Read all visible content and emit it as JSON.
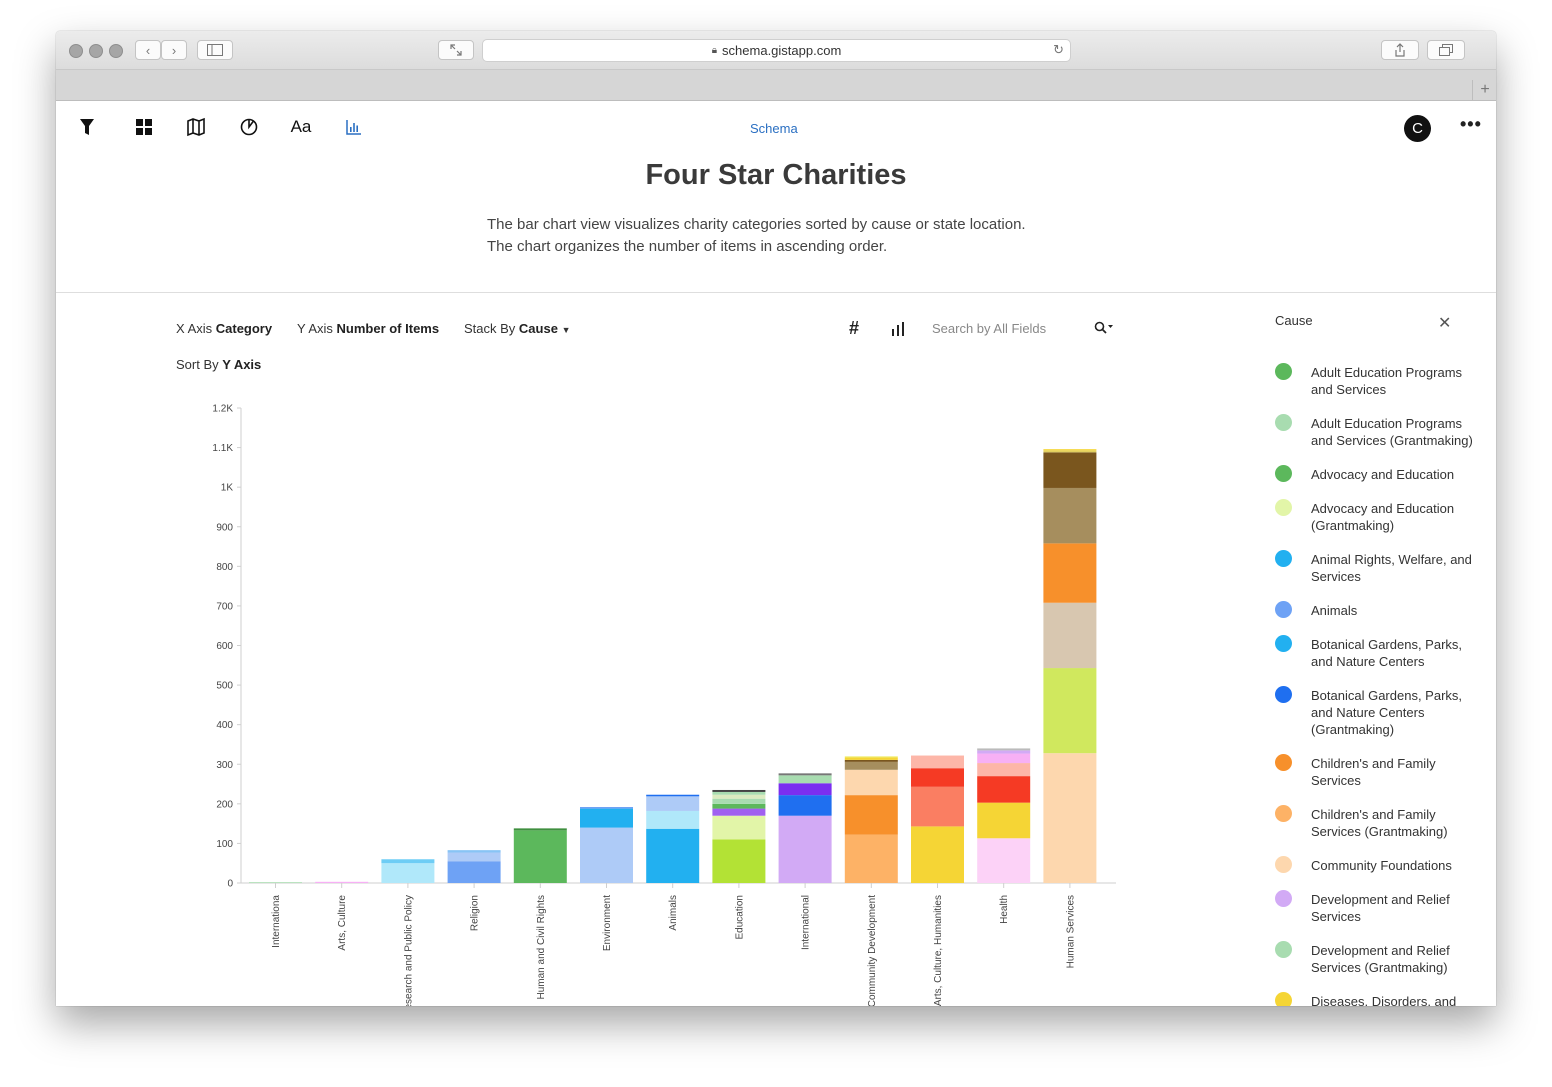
{
  "browser": {
    "url": "schema.gistapp.com"
  },
  "app": {
    "brand_link": "Schema",
    "avatar_initial": "C",
    "more": "•••",
    "font_tool": "Aa",
    "accent": "#2a6fc2"
  },
  "header": {
    "title": "Four Star Charities",
    "description_line1": "The bar chart view visualizes charity categories sorted by cause or state location.",
    "description_line2": "The chart organizes the number of items in ascending order."
  },
  "controls": {
    "x_axis_label": "X Axis",
    "x_axis_value": "Category",
    "y_axis_label": "Y Axis",
    "y_axis_value": "Number of Items",
    "stack_label": "Stack By",
    "stack_value": "Cause",
    "sort_label": "Sort By",
    "sort_value": "Y Axis",
    "hash_icon": "#",
    "search_placeholder": "Search by All Fields"
  },
  "legend": {
    "title": "Cause",
    "close": "✕",
    "items": [
      {
        "label": "Adult Education Programs and Services",
        "color": "#5cb85c"
      },
      {
        "label": "Adult Education Programs and Services (Grantmaking)",
        "color": "#a8dcb0"
      },
      {
        "label": "Advocacy and Education",
        "color": "#5cb85c"
      },
      {
        "label": "Advocacy and Education (Grantmaking)",
        "color": "#e2f5a8"
      },
      {
        "label": "Animal Rights, Welfare, and Services",
        "color": "#22b0f0"
      },
      {
        "label": "Animals",
        "color": "#6ea2f5"
      },
      {
        "label": "Botanical Gardens, Parks, and Nature Centers",
        "color": "#22b0f0"
      },
      {
        "label": "Botanical Gardens, Parks, and Nature Centers (Grantmaking)",
        "color": "#1f6ff0"
      },
      {
        "label": "Children's and Family Services",
        "color": "#f7902b"
      },
      {
        "label": "Children's and Family Services (Grantmaking)",
        "color": "#fdb266"
      },
      {
        "label": "Community Foundations",
        "color": "#fdd7ae"
      },
      {
        "label": "Development and Relief Services",
        "color": "#d2aaf5"
      },
      {
        "label": "Development and Relief Services (Grantmaking)",
        "color": "#a8dcb0"
      },
      {
        "label": "Diseases, Disorders, and",
        "color": "#f5d535"
      }
    ]
  },
  "chart_data": {
    "type": "bar",
    "stacked": true,
    "xlabel": "Category",
    "ylabel": "Number of Items",
    "ylim": [
      0,
      1200
    ],
    "yticks": [
      0,
      100,
      200,
      300,
      400,
      500,
      600,
      700,
      800,
      900,
      1000,
      1100,
      1200
    ],
    "ytick_labels": [
      "0",
      "100",
      "200",
      "300",
      "400",
      "500",
      "600",
      "700",
      "800",
      "900",
      "1K",
      "1.1K",
      "1.2K"
    ],
    "grid": false,
    "categories": [
      {
        "name": "Internationa",
        "segments": [
          {
            "value": 2,
            "color": "#a8dcb0"
          }
        ]
      },
      {
        "name": "Arts, Culture",
        "segments": [
          {
            "value": 3,
            "color": "#f7b0f5"
          }
        ]
      },
      {
        "name": "esearch and Public Policy",
        "segments": [
          {
            "value": 50,
            "color": "#b0e8fa"
          },
          {
            "value": 10,
            "color": "#6ecdf5"
          }
        ]
      },
      {
        "name": "Religion",
        "segments": [
          {
            "value": 55,
            "color": "#6ea2f5"
          },
          {
            "value": 22,
            "color": "#aecbf7"
          },
          {
            "value": 6,
            "color": "#88c4f5"
          }
        ]
      },
      {
        "name": "Human and Civil Rights",
        "segments": [
          {
            "value": 133,
            "color": "#5cb85c"
          },
          {
            "value": 5,
            "color": "#3f8f3f"
          }
        ]
      },
      {
        "name": "Environment",
        "segments": [
          {
            "value": 140,
            "color": "#aecbf7"
          },
          {
            "value": 48,
            "color": "#22b0f0"
          },
          {
            "value": 4,
            "color": "#6ea2f5"
          }
        ]
      },
      {
        "name": "Animals",
        "segments": [
          {
            "value": 137,
            "color": "#22b0f0"
          },
          {
            "value": 45,
            "color": "#b0e8fa"
          },
          {
            "value": 37,
            "color": "#aecbf7"
          },
          {
            "value": 4,
            "color": "#1f6ff0"
          }
        ]
      },
      {
        "name": "Education",
        "segments": [
          {
            "value": 110,
            "color": "#b3e235"
          },
          {
            "value": 60,
            "color": "#e2f5a8"
          },
          {
            "value": 18,
            "color": "#a060f0"
          },
          {
            "value": 12,
            "color": "#5cb85c"
          },
          {
            "value": 13,
            "color": "#a8dcb0"
          },
          {
            "value": 10,
            "color": "#dcebc0"
          },
          {
            "value": 7,
            "color": "#a8dcb0"
          },
          {
            "value": 5,
            "color": "#444444"
          }
        ]
      },
      {
        "name": "International",
        "segments": [
          {
            "value": 170,
            "color": "#d2aaf5"
          },
          {
            "value": 52,
            "color": "#1f6ff0"
          },
          {
            "value": 30,
            "color": "#7a2ef0"
          },
          {
            "value": 20,
            "color": "#a8dcb0"
          },
          {
            "value": 5,
            "color": "#777777"
          }
        ]
      },
      {
        "name": "Community Development",
        "segments": [
          {
            "value": 122,
            "color": "#fdb266"
          },
          {
            "value": 100,
            "color": "#f7902b"
          },
          {
            "value": 64,
            "color": "#fdd7ae"
          },
          {
            "value": 20,
            "color": "#a68e5e"
          },
          {
            "value": 5,
            "color": "#7a561e"
          },
          {
            "value": 6,
            "color": "#f5d535"
          },
          {
            "value": 3,
            "color": "#f0ed70"
          }
        ]
      },
      {
        "name": "Arts, Culture, Humanities",
        "segments": [
          {
            "value": 143,
            "color": "#f5d535"
          },
          {
            "value": 100,
            "color": "#fa7e62"
          },
          {
            "value": 47,
            "color": "#f53a24"
          },
          {
            "value": 32,
            "color": "#fdb6a8"
          }
        ]
      },
      {
        "name": "Health",
        "segments": [
          {
            "value": 113,
            "color": "#fcd2f7"
          },
          {
            "value": 90,
            "color": "#f5d535"
          },
          {
            "value": 67,
            "color": "#f53a24"
          },
          {
            "value": 33,
            "color": "#fdb6a8"
          },
          {
            "value": 24,
            "color": "#f7b0f5"
          },
          {
            "value": 8,
            "color": "#d2aaf5"
          },
          {
            "value": 5,
            "color": "#bbbbbb"
          }
        ]
      },
      {
        "name": "Human Services",
        "segments": [
          {
            "value": 328,
            "color": "#fdd7ae"
          },
          {
            "value": 215,
            "color": "#d0e85e"
          },
          {
            "value": 165,
            "color": "#d8c7b0"
          },
          {
            "value": 150,
            "color": "#f7902b"
          },
          {
            "value": 140,
            "color": "#a68e5e"
          },
          {
            "value": 90,
            "color": "#7a561e"
          },
          {
            "value": 5,
            "color": "#e2d060"
          },
          {
            "value": 3,
            "color": "#f5d535"
          }
        ]
      }
    ]
  }
}
